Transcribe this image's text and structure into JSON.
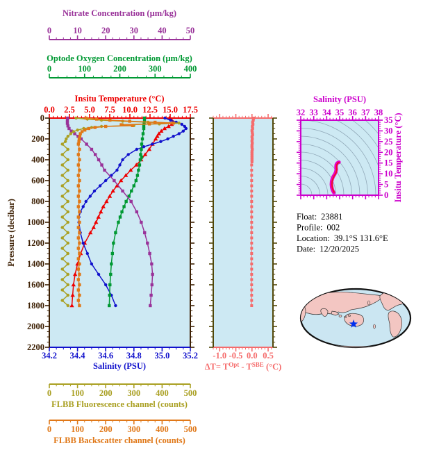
{
  "info": {
    "lines": [
      {
        "label": "Float:",
        "value": "23881"
      },
      {
        "label": "Profile:",
        "value": "002"
      },
      {
        "label": "Location:",
        "value": "39.1°S  131.6°E"
      },
      {
        "label": "Date:",
        "value": "12/20/2025"
      }
    ]
  },
  "chart_data": {
    "type": "line",
    "title": "Argo float multi-parameter depth profile",
    "panel_background": "#cde9f3",
    "axes": {
      "nitrate": {
        "title": "Nitrate Concentration (µm/kg)",
        "range": [
          0,
          50
        ],
        "major": 10,
        "minor": 2.5,
        "tick_labels": [
          "0",
          "10",
          "20",
          "30",
          "40",
          "50"
        ],
        "color": "#993299"
      },
      "oxygen": {
        "title": "Optode Oxygen Concentration (µm/kg)",
        "range": [
          0,
          400
        ],
        "major": 100,
        "minor": 25,
        "tick_labels": [
          "0",
          "100",
          "200",
          "300",
          "400"
        ],
        "color": "#009933"
      },
      "temperature": {
        "title": "Insitu Temperature (°C)",
        "range": [
          0,
          17.5
        ],
        "major": 2.5,
        "minor": 0.5,
        "tick_labels": [
          "0.0",
          "2.5",
          "5.0",
          "7.5",
          "10.0",
          "12.5",
          "15.0",
          "17.5"
        ],
        "color": "#ee0000"
      },
      "salinity": {
        "title": "Salinity (PSU)",
        "range": [
          34.2,
          35.2
        ],
        "major": 0.2,
        "minor": 0.05,
        "tick_labels": [
          "34.2",
          "34.4",
          "34.6",
          "34.8",
          "35.0",
          "35.2"
        ],
        "color": "#1111cc"
      },
      "fluorescence": {
        "title": "FLBB Fluorescence channel (counts)",
        "range": [
          0,
          500
        ],
        "major": 100,
        "minor": 25,
        "tick_labels": [
          "0",
          "100",
          "200",
          "300",
          "400",
          "500"
        ],
        "color": "#aaa023"
      },
      "backscatter": {
        "title": "FLBB Backscatter channel (counts)",
        "range": [
          0,
          500
        ],
        "major": 100,
        "minor": 25,
        "tick_labels": [
          "0",
          "100",
          "200",
          "300",
          "400",
          "500"
        ],
        "color": "#e07818"
      },
      "pressure": {
        "title": "Pressure (decibar)",
        "range": [
          0,
          2200
        ],
        "major": 200,
        "minor": 50,
        "tick_labels": [
          "0",
          "200",
          "400",
          "600",
          "800",
          "1000",
          "1200",
          "1400",
          "1600",
          "1800",
          "2000",
          "2200"
        ],
        "color": "#3d2004"
      },
      "dt": {
        "title_parts": {
          "pre": "ΔT= T",
          "sup1": "Opt",
          "mid": " - T",
          "sup2": "SBE",
          "post": " (°C)"
        },
        "range": [
          -1.2,
          0.65
        ],
        "major": 0.5,
        "minor": 0.1,
        "tick_labels": [
          "-1.0",
          "-0.5",
          "0.0",
          "0.5"
        ],
        "color": "#f56c6c",
        "rail_color": "#514709"
      },
      "ts_salinity": {
        "title": "Salinity (PSU)",
        "range": [
          32,
          38
        ],
        "major": 1,
        "minor": 0.25,
        "tick_labels": [
          "32",
          "33",
          "34",
          "35",
          "36",
          "37",
          "38"
        ],
        "color": "#cc00cc"
      },
      "ts_temperature": {
        "title": "Insitu Temperature (°C)",
        "range": [
          0,
          35
        ],
        "major": 5,
        "minor": 1,
        "tick_labels": [
          "0",
          "5",
          "10",
          "15",
          "20",
          "25",
          "30",
          "35"
        ],
        "color": "#cc00cc"
      }
    },
    "profiles": {
      "y_axis": "pressure",
      "series": [
        {
          "name": "insitu-temperature",
          "axis": "temperature",
          "color": "#ee0000",
          "marker": "triangle",
          "p": [
            0,
            20,
            40,
            60,
            80,
            100,
            125,
            150,
            175,
            200,
            250,
            300,
            350,
            400,
            450,
            500,
            550,
            600,
            650,
            700,
            750,
            800,
            850,
            900,
            950,
            1000,
            1050,
            1100,
            1200,
            1300,
            1400,
            1500,
            1600,
            1700,
            1800
          ],
          "v": [
            14.9,
            15.2,
            15.4,
            15.2,
            14.8,
            14.3,
            13.9,
            13.6,
            13.4,
            13.2,
            12.8,
            12.4,
            11.9,
            11.4,
            10.8,
            10.1,
            9.5,
            8.9,
            8.4,
            7.9,
            7.5,
            7.1,
            6.7,
            6.4,
            6.1,
            5.8,
            5.5,
            5.1,
            4.4,
            3.9,
            3.5,
            3.2,
            3.0,
            2.9,
            2.8
          ]
        },
        {
          "name": "salinity",
          "axis": "salinity",
          "color": "#1111cc",
          "marker": "circle",
          "p": [
            0,
            20,
            40,
            60,
            80,
            100,
            125,
            150,
            175,
            200,
            225,
            250,
            275,
            300,
            350,
            400,
            450,
            500,
            550,
            600,
            650,
            700,
            750,
            800,
            850,
            900,
            950,
            1000,
            1100,
            1200,
            1300,
            1400,
            1500,
            1600,
            1700,
            1800
          ],
          "v": [
            35.02,
            35.06,
            35.1,
            35.14,
            35.16,
            35.17,
            35.15,
            35.12,
            35.08,
            35.04,
            34.99,
            34.93,
            34.87,
            34.82,
            34.76,
            34.72,
            34.7,
            34.68,
            34.64,
            34.6,
            34.56,
            34.52,
            34.49,
            34.46,
            34.44,
            34.42,
            34.41,
            34.41,
            34.42,
            34.44,
            34.47,
            34.5,
            34.55,
            34.6,
            34.64,
            34.67
          ]
        },
        {
          "name": "optode-oxygen",
          "axis": "oxygen",
          "color": "#009933",
          "marker": "square",
          "p": [
            0,
            25,
            50,
            75,
            100,
            150,
            200,
            250,
            300,
            350,
            375,
            400,
            450,
            500,
            550,
            600,
            650,
            700,
            750,
            800,
            850,
            900,
            950,
            1000,
            1100,
            1200,
            1300,
            1400,
            1500,
            1600,
            1700,
            1800
          ],
          "v": [
            270,
            270,
            269,
            268,
            268,
            266,
            264,
            262,
            261,
            259,
            262,
            258,
            256,
            253,
            250,
            246,
            240,
            233,
            226,
            218,
            212,
            206,
            201,
            196,
            188,
            182,
            179,
            176,
            174,
            172,
            171,
            170
          ]
        },
        {
          "name": "nitrate",
          "axis": "nitrate",
          "color": "#993299",
          "marker": "square",
          "p": [
            0,
            25,
            50,
            75,
            100,
            125,
            150,
            175,
            200,
            250,
            300,
            350,
            400,
            450,
            500,
            600,
            700,
            800,
            900,
            1000,
            1100,
            1200,
            1300,
            1400,
            1500,
            1600,
            1700,
            1800
          ],
          "v": [
            6.5,
            6.4,
            6.4,
            6.6,
            7.0,
            7.8,
            9.0,
            10.2,
            11.3,
            13.2,
            15.0,
            16.3,
            17.5,
            18.6,
            19.6,
            23.0,
            26.0,
            29.0,
            31.0,
            32.6,
            33.8,
            34.8,
            35.6,
            36.3,
            36.6,
            36.4,
            36.1,
            35.8
          ]
        },
        {
          "name": "flbb-fluorescence",
          "axis": "fluorescence",
          "color": "#aaa023",
          "marker": "circle",
          "p": [
            0,
            10,
            20,
            30,
            40,
            48,
            56,
            64,
            72,
            80,
            90,
            100,
            115,
            130,
            150,
            175,
            200,
            225,
            250,
            300,
            350,
            400,
            450,
            500,
            550,
            600,
            650,
            700,
            750,
            800,
            850,
            900,
            950,
            1000,
            1050,
            1100,
            1150,
            1200,
            1250,
            1300,
            1350,
            1400,
            1450,
            1500,
            1550,
            1600,
            1650,
            1700,
            1750,
            1800
          ],
          "v": [
            95,
            135,
            185,
            260,
            350,
            460,
            390,
            260,
            300,
            185,
            150,
            122,
            100,
            86,
            76,
            66,
            60,
            57,
            46,
            66,
            46,
            66,
            46,
            66,
            46,
            66,
            46,
            66,
            46,
            66,
            46,
            66,
            46,
            66,
            46,
            66,
            46,
            66,
            46,
            66,
            46,
            66,
            46,
            66,
            46,
            66,
            46,
            66,
            46,
            66
          ]
        },
        {
          "name": "flbb-backscatter",
          "axis": "backscatter",
          "color": "#e07818",
          "marker": "square",
          "p": [
            0,
            10,
            20,
            30,
            40,
            48,
            56,
            64,
            72,
            80,
            90,
            100,
            115,
            130,
            150,
            175,
            200,
            225,
            250,
            300,
            350,
            400,
            450,
            500,
            550,
            600,
            650,
            700,
            750,
            800,
            850,
            900,
            950,
            1000,
            1050,
            1100,
            1150,
            1200,
            1250,
            1300,
            1350,
            1400,
            1450,
            1500,
            1550,
            1600,
            1650,
            1700,
            1750,
            1800
          ],
          "v": [
            130,
            168,
            215,
            285,
            375,
            440,
            355,
            255,
            295,
            200,
            162,
            140,
            126,
            116,
            110,
            108,
            106,
            105,
            103,
            107,
            103,
            107,
            103,
            107,
            103,
            107,
            103,
            107,
            103,
            107,
            103,
            107,
            103,
            107,
            103,
            107,
            103,
            107,
            103,
            107,
            103,
            107,
            103,
            107,
            103,
            107,
            103,
            107,
            103,
            107
          ]
        }
      ]
    },
    "dt_profile": {
      "color": "#f56c6c",
      "marker": "square",
      "p": [
        0,
        20,
        40,
        60,
        80,
        100,
        120,
        140,
        160,
        180,
        200,
        220,
        240,
        260,
        280,
        300,
        320,
        340,
        360,
        380,
        400,
        420,
        450,
        500,
        550,
        600,
        650,
        700,
        750,
        800,
        850,
        900,
        950,
        1000,
        1050,
        1100,
        1150,
        1200,
        1250,
        1300,
        1350,
        1400,
        1450,
        1500,
        1550,
        1600,
        1650,
        1700,
        1750,
        1800
      ],
      "v": [
        0.05,
        0.04,
        0.02,
        0.03,
        0.01,
        0.02,
        0.0,
        0.01,
        0.02,
        0.0,
        0.01,
        0.0,
        0.01,
        0.0,
        0.0,
        0.01,
        0.0,
        0.0,
        0.0,
        0.0,
        0.0,
        0.0,
        -0.01,
        -0.01,
        -0.01,
        -0.01,
        -0.01,
        -0.01,
        -0.01,
        -0.01,
        -0.01,
        -0.01,
        -0.01,
        -0.01,
        -0.01,
        -0.01,
        -0.01,
        -0.01,
        -0.01,
        -0.01,
        -0.01,
        -0.01,
        -0.01,
        -0.01,
        -0.01,
        -0.01,
        -0.01,
        -0.01,
        -0.01,
        -0.01
      ]
    },
    "ts_curve": {
      "color": "#e800c8",
      "core_color": "#ee1122",
      "contour_color": "#90a8b8",
      "salinity": [
        34.55,
        34.46,
        34.39,
        34.36,
        34.38,
        34.43,
        34.52,
        34.62,
        34.7,
        34.74,
        34.72,
        34.74,
        34.82,
        34.95
      ],
      "temperature": [
        1.2,
        2.2,
        3.6,
        5.0,
        6.4,
        7.6,
        8.8,
        9.8,
        10.8,
        12.0,
        13.2,
        14.2,
        15.0,
        15.4
      ]
    },
    "map": {
      "ocean_color": "#cbe6f2",
      "land_color": "#f3c6c2",
      "outline_color": "#111111",
      "marker": {
        "shape": "star",
        "color": "#0030ee"
      }
    }
  }
}
